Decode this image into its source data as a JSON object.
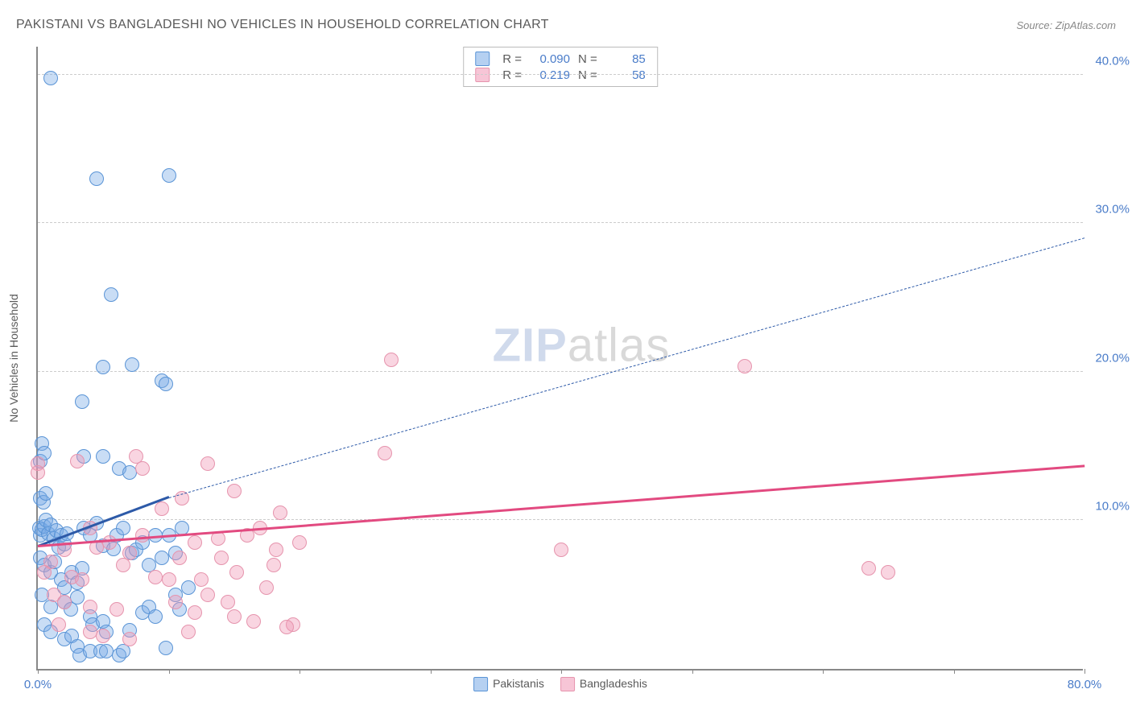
{
  "title": "PAKISTANI VS BANGLADESHI NO VEHICLES IN HOUSEHOLD CORRELATION CHART",
  "source": "Source: ZipAtlas.com",
  "watermark": {
    "zip": "ZIP",
    "atlas": "atlas"
  },
  "y_axis": {
    "label": "No Vehicles in Household"
  },
  "colors": {
    "series_a_fill": "rgba(120,170,230,0.40)",
    "series_a_stroke": "#5a94d6",
    "series_b_fill": "rgba(240,150,180,0.40)",
    "series_b_stroke": "#e694ad",
    "axis": "#888888",
    "grid": "#cccccc",
    "text_muted": "#5a5a5a",
    "tick_text": "#4a7cc9",
    "trend_a": "#2d5aa8",
    "trend_b": "#e24a80"
  },
  "chart": {
    "type": "scatter",
    "xlim": [
      0,
      80
    ],
    "ylim": [
      0,
      42
    ],
    "y_ticks": [
      10,
      20,
      30,
      40
    ],
    "y_tick_labels": [
      "10.0%",
      "20.0%",
      "30.0%",
      "40.0%"
    ],
    "x_ticks": [
      0,
      10,
      20,
      30,
      40,
      50,
      60,
      70,
      80
    ],
    "x_tick_labels_shown": {
      "0": "0.0%",
      "80": "80.0%"
    },
    "marker_radius": 9,
    "bottom_legend": [
      {
        "label": "Pakistanis",
        "fill": "rgba(120,170,230,0.55)",
        "stroke": "#5a94d6"
      },
      {
        "label": "Bangladeshis",
        "fill": "rgba(240,150,180,0.55)",
        "stroke": "#e694ad"
      }
    ],
    "top_legend": [
      {
        "swatch_fill": "rgba(120,170,230,0.55)",
        "swatch_stroke": "#5a94d6",
        "r": "0.090",
        "n": "85"
      },
      {
        "swatch_fill": "rgba(240,150,180,0.55)",
        "swatch_stroke": "#e694ad",
        "r": "0.219",
        "n": "58"
      }
    ],
    "trend_lines": [
      {
        "series": "a",
        "x1": 0,
        "y1": 8.2,
        "x2": 10,
        "y2": 11.5,
        "color": "#2d5aa8",
        "width": 3,
        "dash": "none",
        "extend": {
          "x2": 80,
          "y2": 29.0,
          "dash": "6,5",
          "width": 1.6
        }
      },
      {
        "series": "b",
        "x1": 0,
        "y1": 8.2,
        "x2": 80,
        "y2": 13.6,
        "color": "#e24a80",
        "width": 3,
        "dash": "none"
      }
    ],
    "series": [
      {
        "name": "Pakistanis",
        "fill": "rgba(120,170,230,0.40)",
        "stroke": "#5a94d6",
        "points": [
          [
            1.0,
            39.8
          ],
          [
            4.5,
            33.0
          ],
          [
            10.0,
            33.2
          ],
          [
            5.6,
            25.2
          ],
          [
            5.0,
            20.3
          ],
          [
            7.2,
            20.5
          ],
          [
            9.5,
            19.4
          ],
          [
            9.8,
            19.2
          ],
          [
            3.4,
            18.0
          ],
          [
            0.3,
            15.2
          ],
          [
            0.2,
            14.0
          ],
          [
            0.5,
            14.5
          ],
          [
            3.5,
            14.3
          ],
          [
            5.0,
            14.3
          ],
          [
            6.2,
            13.5
          ],
          [
            7.0,
            13.2
          ],
          [
            0.1,
            9.5
          ],
          [
            0.2,
            9.0
          ],
          [
            0.3,
            9.4
          ],
          [
            0.5,
            9.6
          ],
          [
            0.6,
            10.0
          ],
          [
            0.8,
            9.1
          ],
          [
            1.0,
            9.7
          ],
          [
            1.2,
            8.8
          ],
          [
            1.4,
            9.3
          ],
          [
            1.6,
            8.2
          ],
          [
            1.8,
            9.0
          ],
          [
            2.0,
            8.4
          ],
          [
            2.2,
            9.1
          ],
          [
            0.2,
            11.5
          ],
          [
            0.4,
            11.2
          ],
          [
            0.6,
            11.8
          ],
          [
            3.5,
            9.5
          ],
          [
            4.0,
            9.0
          ],
          [
            4.5,
            9.8
          ],
          [
            5.0,
            8.3
          ],
          [
            5.8,
            8.1
          ],
          [
            6.0,
            9.0
          ],
          [
            6.5,
            9.5
          ],
          [
            7.2,
            7.8
          ],
          [
            7.5,
            8.0
          ],
          [
            8.0,
            8.5
          ],
          [
            8.5,
            7.0
          ],
          [
            9.0,
            9.0
          ],
          [
            0.2,
            7.5
          ],
          [
            0.5,
            7.0
          ],
          [
            1.0,
            6.5
          ],
          [
            1.3,
            7.2
          ],
          [
            1.8,
            6.0
          ],
          [
            2.0,
            5.5
          ],
          [
            2.6,
            6.5
          ],
          [
            3.0,
            5.8
          ],
          [
            3.4,
            6.8
          ],
          [
            0.3,
            5.0
          ],
          [
            1.0,
            4.2
          ],
          [
            2.0,
            4.5
          ],
          [
            2.5,
            4.0
          ],
          [
            3.0,
            4.8
          ],
          [
            4.0,
            3.5
          ],
          [
            4.2,
            3.0
          ],
          [
            5.0,
            3.2
          ],
          [
            5.2,
            2.5
          ],
          [
            0.5,
            3.0
          ],
          [
            1.0,
            2.5
          ],
          [
            2.0,
            2.0
          ],
          [
            2.6,
            2.2
          ],
          [
            3.0,
            1.5
          ],
          [
            3.2,
            0.9
          ],
          [
            4.0,
            1.2
          ],
          [
            4.8,
            1.2
          ],
          [
            5.2,
            1.2
          ],
          [
            6.2,
            0.9
          ],
          [
            6.5,
            1.2
          ],
          [
            7.0,
            2.6
          ],
          [
            8.0,
            3.8
          ],
          [
            8.5,
            4.2
          ],
          [
            9.0,
            3.5
          ],
          [
            9.8,
            1.4
          ],
          [
            9.5,
            7.5
          ],
          [
            10.5,
            7.8
          ],
          [
            11.0,
            9.5
          ],
          [
            10.8,
            4.0
          ],
          [
            10.0,
            9.0
          ],
          [
            10.5,
            5.0
          ],
          [
            11.5,
            5.5
          ]
        ]
      },
      {
        "name": "Bangladeshis",
        "fill": "rgba(240,150,180,0.40)",
        "stroke": "#e694ad",
        "points": [
          [
            0.0,
            13.8
          ],
          [
            0.0,
            13.2
          ],
          [
            27.0,
            20.8
          ],
          [
            54.0,
            20.4
          ],
          [
            26.5,
            14.5
          ],
          [
            40.0,
            8.0
          ],
          [
            63.5,
            6.8
          ],
          [
            65.0,
            6.5
          ],
          [
            3.0,
            14.0
          ],
          [
            7.5,
            14.3
          ],
          [
            8.0,
            13.5
          ],
          [
            13.0,
            13.8
          ],
          [
            11.0,
            11.5
          ],
          [
            15.0,
            12.0
          ],
          [
            16.0,
            9.0
          ],
          [
            17.0,
            9.5
          ],
          [
            18.0,
            7.0
          ],
          [
            20.0,
            8.5
          ],
          [
            19.5,
            3.0
          ],
          [
            19.0,
            2.8
          ],
          [
            18.5,
            10.5
          ],
          [
            14.0,
            7.5
          ],
          [
            12.0,
            8.5
          ],
          [
            12.5,
            6.0
          ],
          [
            13.0,
            5.0
          ],
          [
            14.5,
            4.5
          ],
          [
            15.0,
            3.5
          ],
          [
            16.5,
            3.2
          ],
          [
            4.0,
            9.5
          ],
          [
            4.5,
            8.2
          ],
          [
            5.5,
            8.5
          ],
          [
            6.5,
            7.0
          ],
          [
            7.0,
            7.8
          ],
          [
            8.0,
            9.0
          ],
          [
            9.0,
            6.2
          ],
          [
            2.0,
            8.0
          ],
          [
            1.0,
            7.2
          ],
          [
            0.5,
            6.5
          ],
          [
            2.6,
            6.2
          ],
          [
            3.4,
            6.0
          ],
          [
            1.2,
            5.0
          ],
          [
            2.0,
            4.5
          ],
          [
            4.0,
            4.2
          ],
          [
            6.0,
            4.0
          ],
          [
            4.0,
            2.5
          ],
          [
            5.0,
            2.2
          ],
          [
            7.0,
            2.0
          ],
          [
            1.6,
            3.0
          ],
          [
            9.5,
            10.8
          ],
          [
            10.0,
            6.0
          ],
          [
            10.5,
            4.5
          ],
          [
            11.5,
            2.5
          ],
          [
            10.8,
            7.5
          ],
          [
            12.0,
            3.8
          ],
          [
            13.8,
            8.8
          ],
          [
            15.2,
            6.5
          ],
          [
            17.5,
            5.5
          ],
          [
            18.2,
            8.0
          ]
        ]
      }
    ]
  }
}
